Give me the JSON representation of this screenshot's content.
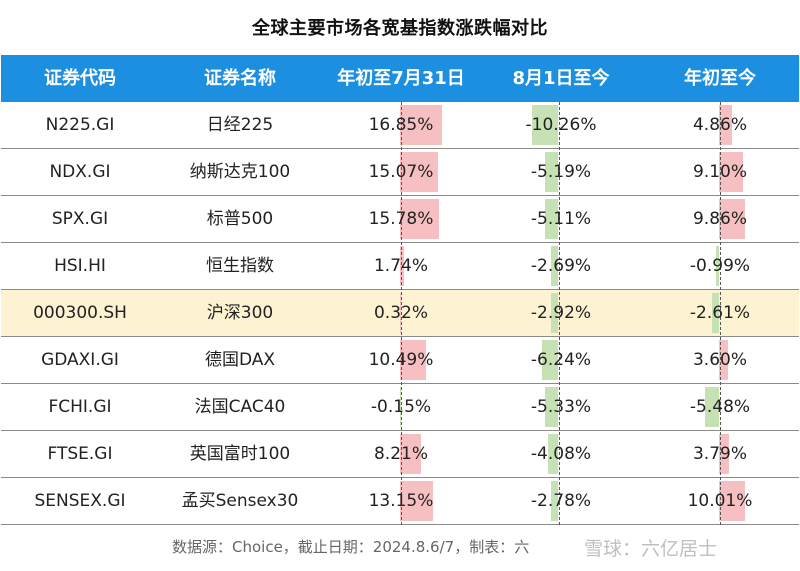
{
  "title": "全球主要市场各宽基指数涨跌幅对比",
  "headers": [
    "证券代码",
    "证券名称",
    "年初至7月31日",
    "8月1日至今",
    "年初至今"
  ],
  "footer": "数据源：Choice，截止日期：2024.8.6/7，制表：六",
  "watermark": "雪球：六亿居士",
  "colors": {
    "header": "#1c8fe0",
    "positive": "#f6c0c3",
    "negative": "#c6e2b4",
    "highlight_row": "#fdf3d2"
  },
  "chart_data": {
    "type": "table",
    "highlight_row": "000300.SH",
    "rows": [
      {
        "code": "N225.GI",
        "name": "日经225",
        "ytd_jul31": "16.85%",
        "aug1_now": "-10.26%",
        "ytd": "4.86%"
      },
      {
        "code": "NDX.GI",
        "name": "纳斯达克100",
        "ytd_jul31": "15.07%",
        "aug1_now": "-5.19%",
        "ytd": "9.10%"
      },
      {
        "code": "SPX.GI",
        "name": "标普500",
        "ytd_jul31": "15.78%",
        "aug1_now": "-5.11%",
        "ytd": "9.86%"
      },
      {
        "code": "HSI.HI",
        "name": "恒生指数",
        "ytd_jul31": "1.74%",
        "aug1_now": "-2.69%",
        "ytd": "-0.99%"
      },
      {
        "code": "000300.SH",
        "name": "沪深300",
        "ytd_jul31": "0.32%",
        "aug1_now": "-2.92%",
        "ytd": "-2.61%"
      },
      {
        "code": "GDAXI.GI",
        "name": "德国DAX",
        "ytd_jul31": "10.49%",
        "aug1_now": "-6.24%",
        "ytd": "3.60%"
      },
      {
        "code": "FCHI.GI",
        "name": "法国CAC40",
        "ytd_jul31": "-0.15%",
        "aug1_now": "-5.33%",
        "ytd": "-5.48%"
      },
      {
        "code": "FTSE.GI",
        "name": "英国富时100",
        "ytd_jul31": "8.21%",
        "aug1_now": "-4.08%",
        "ytd": "3.79%"
      },
      {
        "code": "SENSEX.GI",
        "name": "孟买Sensex30",
        "ytd_jul31": "13.15%",
        "aug1_now": "-2.78%",
        "ytd": "10.01%"
      }
    ]
  }
}
